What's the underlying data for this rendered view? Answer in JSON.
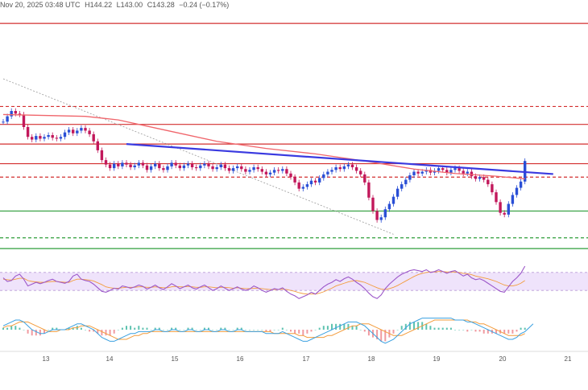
{
  "header": {
    "datetime": "Nov 20, 2025 03:48 UTC",
    "high": "H144.22",
    "low": "L143.00",
    "close": "C143.28",
    "change": "−0.24 (−0.17%)"
  },
  "colors": {
    "up": "#2a4fd6",
    "down": "#c2185b",
    "ma": "#f0656b",
    "trendline": "#3a3ae0",
    "resistance": "#d32f2f",
    "support": "#2e9d3a",
    "rsi": "#9c57c9",
    "rsi_band": "#efe3fb",
    "macd_line": "#3aa0e0",
    "signal_line": "#f39c3c"
  },
  "chart_data": [
    {
      "type": "candlestick",
      "panel": "price",
      "title": "",
      "x_ticks": [
        "13",
        "14",
        "15",
        "16",
        "17",
        "18",
        "19",
        "20",
        "21"
      ],
      "x_unit": "day (November 2025)",
      "y_note": "no price scale shown; values are relative levels (higher = higher price)",
      "ylim": [
        0,
        100
      ],
      "candles": [
        {
          "o": 80,
          "c": 80
        },
        {
          "o": 80,
          "c": 86
        },
        {
          "o": 86,
          "c": 92
        },
        {
          "o": 92,
          "c": 89
        },
        {
          "o": 89,
          "c": 88
        },
        {
          "o": 88,
          "c": 74
        },
        {
          "o": 74,
          "c": 63
        },
        {
          "o": 63,
          "c": 60
        },
        {
          "o": 60,
          "c": 64
        },
        {
          "o": 64,
          "c": 61
        },
        {
          "o": 61,
          "c": 63
        },
        {
          "o": 63,
          "c": 65
        },
        {
          "o": 65,
          "c": 62
        },
        {
          "o": 62,
          "c": 61
        },
        {
          "o": 61,
          "c": 63
        },
        {
          "o": 63,
          "c": 68
        },
        {
          "o": 68,
          "c": 71
        },
        {
          "o": 71,
          "c": 67
        },
        {
          "o": 67,
          "c": 70
        },
        {
          "o": 70,
          "c": 73
        },
        {
          "o": 73,
          "c": 70
        },
        {
          "o": 70,
          "c": 66
        },
        {
          "o": 66,
          "c": 58
        },
        {
          "o": 58,
          "c": 48
        },
        {
          "o": 48,
          "c": 37
        },
        {
          "o": 37,
          "c": 32
        },
        {
          "o": 32,
          "c": 28
        },
        {
          "o": 28,
          "c": 33
        },
        {
          "o": 33,
          "c": 30
        },
        {
          "o": 30,
          "c": 34
        },
        {
          "o": 34,
          "c": 32
        },
        {
          "o": 32,
          "c": 29
        },
        {
          "o": 29,
          "c": 31
        },
        {
          "o": 31,
          "c": 34
        },
        {
          "o": 34,
          "c": 31
        },
        {
          "o": 31,
          "c": 26
        },
        {
          "o": 26,
          "c": 30
        },
        {
          "o": 30,
          "c": 33
        },
        {
          "o": 33,
          "c": 28
        },
        {
          "o": 28,
          "c": 26
        },
        {
          "o": 26,
          "c": 30
        },
        {
          "o": 30,
          "c": 34
        },
        {
          "o": 34,
          "c": 31
        },
        {
          "o": 31,
          "c": 28
        },
        {
          "o": 28,
          "c": 31
        },
        {
          "o": 31,
          "c": 33
        },
        {
          "o": 33,
          "c": 29
        },
        {
          "o": 29,
          "c": 28
        },
        {
          "o": 28,
          "c": 31
        },
        {
          "o": 31,
          "c": 33
        },
        {
          "o": 33,
          "c": 30
        },
        {
          "o": 30,
          "c": 27
        },
        {
          "o": 27,
          "c": 29
        },
        {
          "o": 29,
          "c": 32
        },
        {
          "o": 32,
          "c": 28
        },
        {
          "o": 28,
          "c": 25
        },
        {
          "o": 25,
          "c": 28
        },
        {
          "o": 28,
          "c": 30
        },
        {
          "o": 30,
          "c": 27
        },
        {
          "o": 27,
          "c": 24
        },
        {
          "o": 24,
          "c": 26
        },
        {
          "o": 26,
          "c": 29
        },
        {
          "o": 29,
          "c": 27
        },
        {
          "o": 27,
          "c": 24
        },
        {
          "o": 24,
          "c": 21
        },
        {
          "o": 21,
          "c": 23
        },
        {
          "o": 23,
          "c": 26
        },
        {
          "o": 26,
          "c": 25
        },
        {
          "o": 25,
          "c": 27
        },
        {
          "o": 27,
          "c": 22
        },
        {
          "o": 22,
          "c": 18
        },
        {
          "o": 18,
          "c": 12
        },
        {
          "o": 12,
          "c": 5
        },
        {
          "o": 5,
          "c": 7
        },
        {
          "o": 7,
          "c": 10
        },
        {
          "o": 10,
          "c": 14
        },
        {
          "o": 14,
          "c": 12
        },
        {
          "o": 12,
          "c": 17
        },
        {
          "o": 17,
          "c": 21
        },
        {
          "o": 21,
          "c": 24
        },
        {
          "o": 24,
          "c": 26
        },
        {
          "o": 26,
          "c": 29
        },
        {
          "o": 29,
          "c": 27
        },
        {
          "o": 27,
          "c": 30
        },
        {
          "o": 30,
          "c": 32
        },
        {
          "o": 32,
          "c": 29
        },
        {
          "o": 29,
          "c": 25
        },
        {
          "o": 25,
          "c": 21
        },
        {
          "o": 21,
          "c": 12
        },
        {
          "o": 12,
          "c": -5
        },
        {
          "o": -5,
          "c": -20
        },
        {
          "o": -20,
          "c": -30
        },
        {
          "o": -30,
          "c": -27
        },
        {
          "o": -27,
          "c": -18
        },
        {
          "o": -18,
          "c": -12
        },
        {
          "o": -12,
          "c": -4
        },
        {
          "o": -4,
          "c": 5
        },
        {
          "o": 5,
          "c": 10
        },
        {
          "o": 10,
          "c": 15
        },
        {
          "o": 15,
          "c": 20
        },
        {
          "o": 20,
          "c": 24
        },
        {
          "o": 24,
          "c": 22
        },
        {
          "o": 22,
          "c": 24
        },
        {
          "o": 24,
          "c": 26
        },
        {
          "o": 26,
          "c": 23
        },
        {
          "o": 23,
          "c": 25
        },
        {
          "o": 25,
          "c": 28
        },
        {
          "o": 28,
          "c": 26
        },
        {
          "o": 26,
          "c": 23
        },
        {
          "o": 23,
          "c": 26
        },
        {
          "o": 26,
          "c": 28
        },
        {
          "o": 28,
          "c": 25
        },
        {
          "o": 25,
          "c": 22
        },
        {
          "o": 22,
          "c": 24
        },
        {
          "o": 24,
          "c": 19
        },
        {
          "o": 19,
          "c": 16
        },
        {
          "o": 16,
          "c": 18
        },
        {
          "o": 18,
          "c": 15
        },
        {
          "o": 15,
          "c": 10
        },
        {
          "o": 10,
          "c": 1
        },
        {
          "o": 1,
          "c": -10
        },
        {
          "o": -10,
          "c": -22
        },
        {
          "o": -22,
          "c": -24
        },
        {
          "o": -24,
          "c": -12
        },
        {
          "o": -12,
          "c": -2
        },
        {
          "o": -2,
          "c": 6
        },
        {
          "o": 6,
          "c": 13
        },
        {
          "o": 13,
          "c": 36
        }
      ],
      "moving_average": [
        {
          "i": 0,
          "v": 88
        },
        {
          "i": 10,
          "v": 87
        },
        {
          "i": 20,
          "v": 86
        },
        {
          "i": 28,
          "v": 82
        },
        {
          "i": 40,
          "v": 70
        },
        {
          "i": 52,
          "v": 58
        },
        {
          "i": 64,
          "v": 50
        },
        {
          "i": 76,
          "v": 44
        },
        {
          "i": 88,
          "v": 36
        },
        {
          "i": 100,
          "v": 27
        },
        {
          "i": 110,
          "v": 22
        },
        {
          "i": 120,
          "v": 19
        },
        {
          "i": 127,
          "v": 16
        }
      ],
      "trendline": [
        {
          "i": 30,
          "v": 55
        },
        {
          "i": 128,
          "v": 25
        }
      ],
      "levels": [
        {
          "v": 190,
          "color": "resistance",
          "style": "solid"
        },
        {
          "v": 97,
          "color": "resistance",
          "style": "dashed"
        },
        {
          "v": 77,
          "color": "resistance",
          "style": "solid"
        },
        {
          "v": 55,
          "color": "resistance",
          "style": "solid"
        },
        {
          "v": 33,
          "color": "resistance",
          "style": "solid"
        },
        {
          "v": 18,
          "color": "resistance",
          "style": "dashed"
        },
        {
          "v": -20,
          "color": "support",
          "style": "solid"
        },
        {
          "v": -50,
          "color": "support",
          "style": "dashed"
        },
        {
          "v": -62,
          "color": "support",
          "style": "solid"
        }
      ],
      "dotted_line": [
        {
          "i": 0,
          "v": 128
        },
        {
          "i": 95,
          "v": -46
        }
      ]
    },
    {
      "type": "line",
      "panel": "rsi",
      "title": "",
      "ylim": [
        0,
        100
      ],
      "series": [
        {
          "values": [
            58,
            50,
            52,
            62,
            66,
            55,
            40,
            44,
            48,
            45,
            48,
            52,
            55,
            50,
            48,
            46,
            50,
            62,
            66,
            55,
            52,
            50,
            44,
            36,
            28,
            26,
            30,
            35,
            33,
            40,
            38,
            35,
            38,
            42,
            39,
            33,
            37,
            42,
            36,
            32,
            38,
            45,
            40,
            34,
            38,
            42,
            36,
            33,
            38,
            42,
            36,
            30,
            34,
            40,
            35,
            30,
            34,
            38,
            33,
            30,
            33,
            40,
            36,
            30,
            26,
            30,
            34,
            32,
            36,
            28,
            22,
            18,
            12,
            16,
            20,
            26,
            22,
            30,
            38,
            44,
            48,
            54,
            50,
            56,
            60,
            55,
            48,
            42,
            34,
            24,
            16,
            12,
            20,
            34,
            44,
            52,
            60,
            66,
            70,
            74,
            76,
            74,
            72,
            76,
            70,
            72,
            76,
            72,
            68,
            72,
            74,
            68,
            62,
            66,
            58,
            54,
            56,
            52,
            46,
            40,
            34,
            28,
            26,
            38,
            50,
            58,
            68,
            84
          ]
        },
        {
          "values": [
            55,
            54,
            53,
            55,
            57,
            57,
            52,
            50,
            49,
            48,
            48,
            49,
            50,
            50,
            49,
            48,
            48,
            52,
            55,
            55,
            54,
            53,
            51,
            47,
            43,
            38,
            36,
            35,
            35,
            36,
            37,
            37,
            37,
            38,
            38,
            37,
            37,
            38,
            37,
            36,
            36,
            38,
            39,
            38,
            38,
            39,
            38,
            37,
            37,
            38,
            38,
            37,
            36,
            37,
            37,
            36,
            35,
            36,
            35,
            34,
            34,
            35,
            35,
            34,
            33,
            32,
            32,
            32,
            33,
            32,
            30,
            28,
            25,
            23,
            22,
            22,
            22,
            24,
            27,
            31,
            35,
            40,
            43,
            46,
            49,
            51,
            52,
            50,
            48,
            44,
            40,
            36,
            33,
            32,
            34,
            37,
            41,
            46,
            51,
            56,
            61,
            65,
            68,
            70,
            71,
            71,
            72,
            72,
            71,
            71,
            71,
            70,
            68,
            67,
            65,
            62,
            60,
            58,
            56,
            53,
            50,
            46,
            42,
            40,
            40,
            42,
            46,
            52
          ]
        }
      ],
      "band": [
        30,
        70
      ]
    },
    {
      "type": "bar+line",
      "panel": "macd",
      "title": "",
      "ylim": [
        -10,
        10
      ],
      "macd": [
        2,
        3,
        4,
        5,
        5,
        4,
        2,
        0,
        -1,
        -2,
        -2,
        -1,
        0,
        0,
        0,
        0,
        1,
        2,
        3,
        3,
        2,
        1,
        0,
        -2,
        -4,
        -5,
        -6,
        -6,
        -5,
        -4,
        -3,
        -2,
        -2,
        -1,
        -1,
        -1,
        -1,
        0,
        0,
        -1,
        -1,
        0,
        0,
        -1,
        -1,
        0,
        0,
        -1,
        -1,
        0,
        0,
        -1,
        -1,
        0,
        0,
        -1,
        -1,
        0,
        0,
        -1,
        -1,
        -1,
        -1,
        -1,
        -2,
        -2,
        -2,
        -2,
        -1,
        -2,
        -3,
        -4,
        -5,
        -6,
        -6,
        -5,
        -4,
        -3,
        -2,
        -1,
        0,
        1,
        2,
        3,
        4,
        4,
        4,
        3,
        2,
        0,
        -2,
        -4,
        -6,
        -7,
        -6,
        -5,
        -3,
        -1,
        1,
        3,
        4,
        5,
        6,
        6,
        6,
        6,
        6,
        6,
        6,
        6,
        5,
        5,
        5,
        4,
        4,
        3,
        2,
        1,
        0,
        -1,
        -2,
        -3,
        -4,
        -5,
        -5,
        -4,
        -2,
        -1,
        1,
        3
      ],
      "signal": [
        1,
        2,
        2,
        3,
        4,
        4,
        4,
        3,
        2,
        1,
        0,
        -1,
        -1,
        -1,
        0,
        0,
        0,
        1,
        1,
        2,
        2,
        2,
        1,
        0,
        -1,
        -2,
        -3,
        -4,
        -5,
        -5,
        -5,
        -4,
        -3,
        -3,
        -2,
        -2,
        -1,
        -1,
        -1,
        -1,
        -1,
        -1,
        -1,
        -1,
        -1,
        -1,
        -1,
        -1,
        -1,
        -1,
        -1,
        -1,
        -1,
        -1,
        -1,
        -1,
        -1,
        -1,
        -1,
        -1,
        -1,
        -1,
        -1,
        -1,
        -1,
        -1,
        -2,
        -2,
        -2,
        -2,
        -2,
        -2,
        -3,
        -3,
        -4,
        -4,
        -4,
        -4,
        -4,
        -3,
        -3,
        -2,
        -1,
        0,
        1,
        2,
        2,
        3,
        3,
        3,
        2,
        1,
        0,
        -1,
        -2,
        -3,
        -3,
        -3,
        -2,
        -1,
        0,
        1,
        2,
        3,
        4,
        5,
        5,
        5,
        5,
        5,
        5,
        5,
        5,
        5,
        4,
        4,
        3,
        3,
        2,
        1,
        0,
        -1,
        -2,
        -3,
        -3,
        -3,
        -3,
        -2
      ]
    }
  ]
}
